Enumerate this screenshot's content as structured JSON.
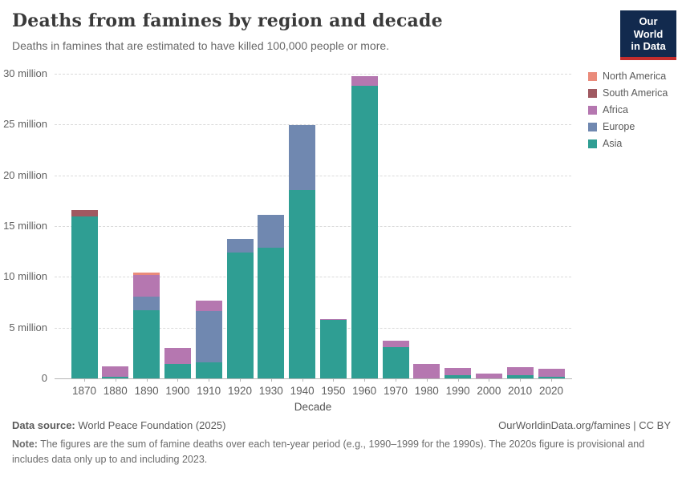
{
  "header": {
    "title": "Deaths from famines by region and decade",
    "subtitle": "Deaths in famines that are estimated to have killed 100,000 people or more."
  },
  "logo": {
    "line1": "Our World",
    "line2": "in Data",
    "bg_color": "#122a4e",
    "accent_color": "#c32d2d"
  },
  "chart_data": {
    "type": "bar",
    "stacked": true,
    "title": "Deaths from famines by region and decade",
    "xlabel": "Decade",
    "ylabel": "",
    "unit": "million deaths",
    "ylim": [
      0,
      30
    ],
    "ytick_step": 5,
    "ytick_label_suffix": " million",
    "grid": "horizontal-dashed",
    "legend_position": "right",
    "categories": [
      "1870",
      "1880",
      "1890",
      "1900",
      "1910",
      "1920",
      "1930",
      "1940",
      "1950",
      "1960",
      "1970",
      "1980",
      "1990",
      "2000",
      "2010",
      "2020"
    ],
    "series": [
      {
        "name": "Asia",
        "color": "#2f9e93",
        "values": [
          15.95,
          0.15,
          6.7,
          1.4,
          1.6,
          12.4,
          12.9,
          18.55,
          5.75,
          28.8,
          3.05,
          0,
          0.35,
          0,
          0.3,
          0.15
        ]
      },
      {
        "name": "Europe",
        "color": "#7088b0",
        "values": [
          0,
          0,
          1.35,
          0,
          5.0,
          1.3,
          3.2,
          6.4,
          0,
          0,
          0,
          0,
          0,
          0,
          0,
          0
        ]
      },
      {
        "name": "Africa",
        "color": "#b577b0",
        "values": [
          0,
          1.05,
          2.1,
          1.6,
          1.05,
          0,
          0,
          0,
          0.1,
          1.0,
          0.65,
          1.4,
          0.65,
          0.5,
          0.78,
          0.78
        ]
      },
      {
        "name": "South America",
        "color": "#a05961",
        "values": [
          0.6,
          0,
          0,
          0,
          0,
          0,
          0,
          0,
          0,
          0,
          0,
          0,
          0,
          0,
          0,
          0
        ]
      },
      {
        "name": "North America",
        "color": "#ea8b7b",
        "values": [
          0,
          0,
          0.25,
          0,
          0,
          0,
          0,
          0,
          0,
          0,
          0,
          0,
          0,
          0,
          0,
          0
        ]
      }
    ],
    "totals": [
      16.55,
      1.2,
      10.4,
      3.0,
      7.65,
      13.7,
      16.1,
      24.95,
      5.85,
      29.8,
      3.7,
      1.4,
      1.0,
      0.5,
      1.08,
      0.93
    ],
    "legend_order": [
      "North America",
      "South America",
      "Africa",
      "Europe",
      "Asia"
    ]
  },
  "footer": {
    "datasource_label": "Data source:",
    "datasource_text": " World Peace Foundation (2025)",
    "link_text": "OurWorldinData.org/famines | CC BY",
    "note_label": "Note:",
    "note_text": " The figures are the sum of famine deaths over each ten-year period (e.g., 1990–1999 for the 1990s). The 2020s figure is provisional and includes data only up to and including 2023."
  }
}
